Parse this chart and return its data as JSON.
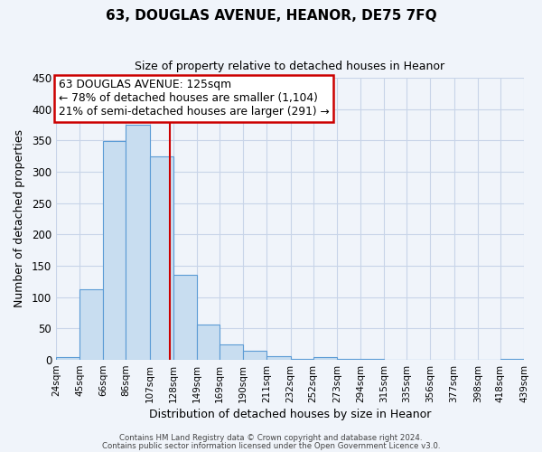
{
  "title": "63, DOUGLAS AVENUE, HEANOR, DE75 7FQ",
  "subtitle": "Size of property relative to detached houses in Heanor",
  "xlabel": "Distribution of detached houses by size in Heanor",
  "ylabel": "Number of detached properties",
  "bar_edges": [
    24,
    45,
    66,
    86,
    107,
    128,
    149,
    169,
    190,
    211,
    232,
    252,
    273,
    294,
    315,
    335,
    356,
    377,
    398,
    418,
    439
  ],
  "bar_heights": [
    5,
    112,
    349,
    375,
    325,
    136,
    57,
    25,
    14,
    6,
    2,
    5,
    1,
    1,
    0,
    0,
    0,
    0,
    0,
    2
  ],
  "bar_color": "#c8ddf0",
  "bar_edge_color": "#5b9bd5",
  "vline_x": 125,
  "vline_color": "#cc0000",
  "annotation_title": "63 DOUGLAS AVENUE: 125sqm",
  "annotation_line1": "← 78% of detached houses are smaller (1,104)",
  "annotation_line2": "21% of semi-detached houses are larger (291) →",
  "annotation_box_edge": "#cc0000",
  "ylim": [
    0,
    450
  ],
  "yticks": [
    0,
    50,
    100,
    150,
    200,
    250,
    300,
    350,
    400,
    450
  ],
  "tick_labels": [
    "24sqm",
    "45sqm",
    "66sqm",
    "86sqm",
    "107sqm",
    "128sqm",
    "149sqm",
    "169sqm",
    "190sqm",
    "211sqm",
    "232sqm",
    "252sqm",
    "273sqm",
    "294sqm",
    "315sqm",
    "335sqm",
    "356sqm",
    "377sqm",
    "398sqm",
    "418sqm",
    "439sqm"
  ],
  "footer1": "Contains HM Land Registry data © Crown copyright and database right 2024.",
  "footer2": "Contains public sector information licensed under the Open Government Licence v3.0.",
  "bg_color": "#f0f4fa",
  "grid_color": "#c8d4e8"
}
